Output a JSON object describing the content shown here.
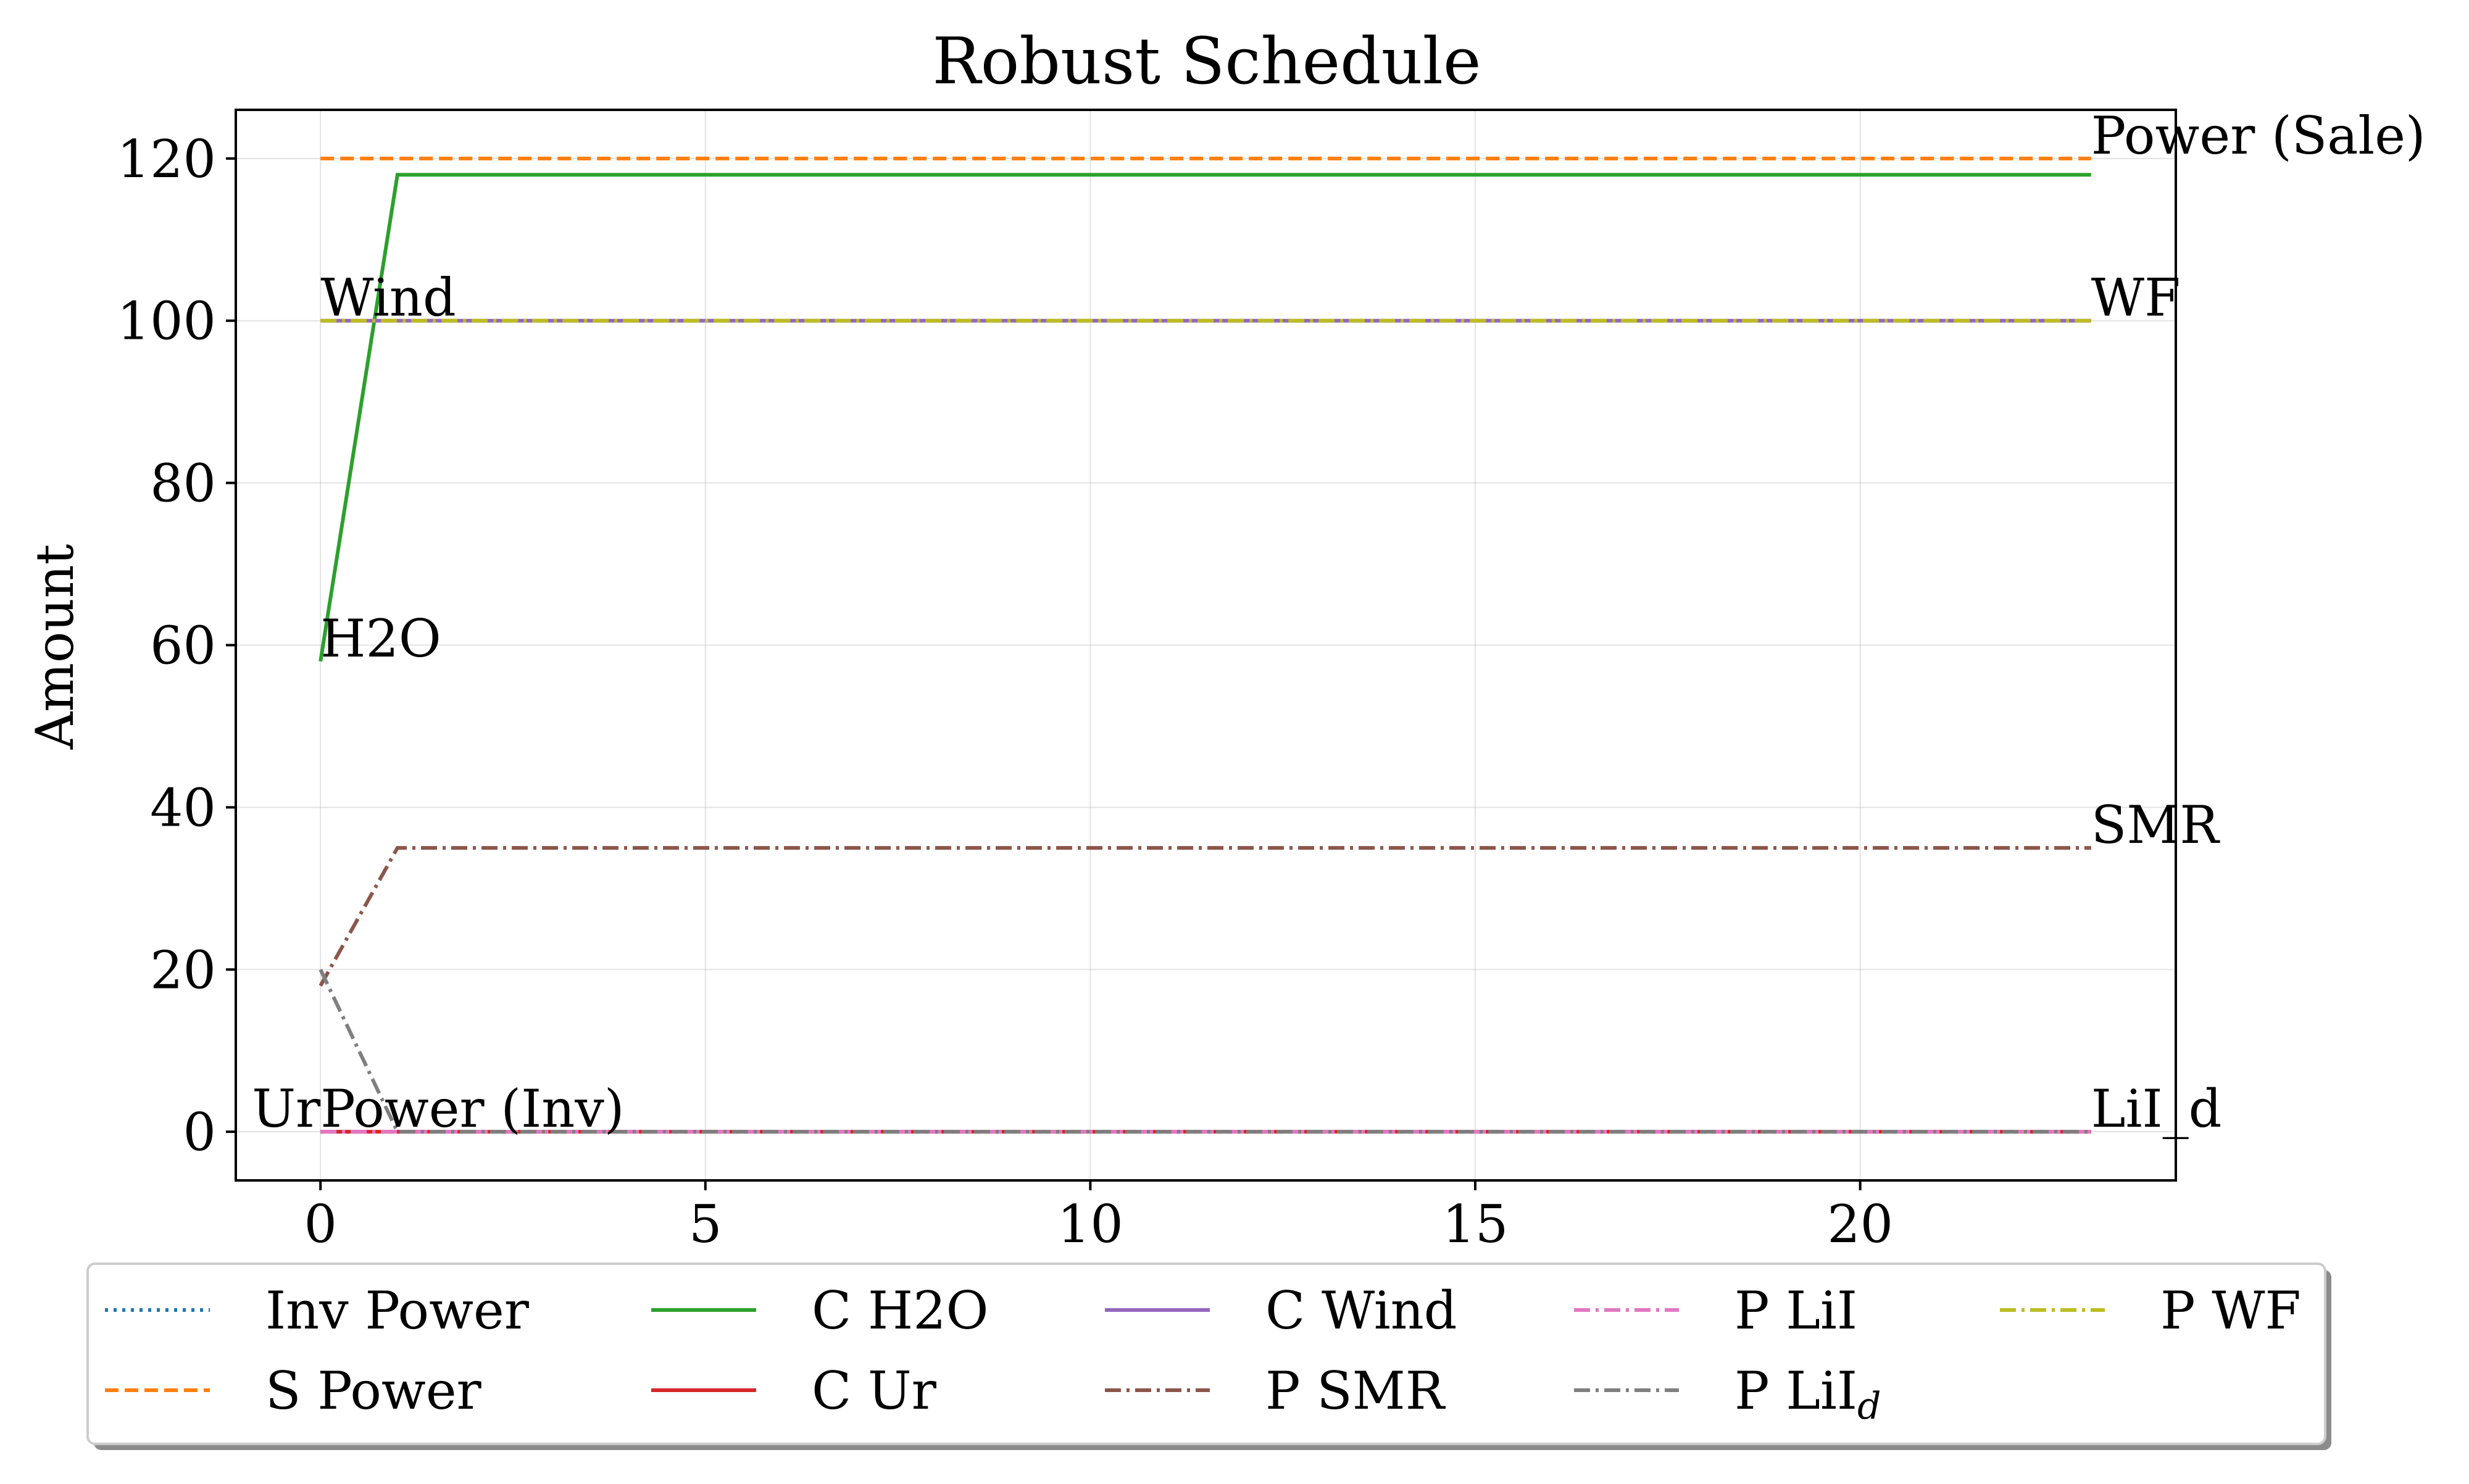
{
  "chart_data": {
    "type": "line",
    "title": "Robust Schedule",
    "xlabel": "",
    "ylabel": "Amount",
    "xlim": [
      -1.1,
      24.1
    ],
    "ylim": [
      -6,
      126
    ],
    "xticks": [
      0,
      5,
      10,
      15,
      20
    ],
    "yticks": [
      0,
      20,
      40,
      60,
      80,
      100,
      120
    ],
    "grid": true,
    "legend_placement": "bottom",
    "x": [
      0,
      1,
      2,
      3,
      4,
      5,
      6,
      7,
      8,
      9,
      10,
      11,
      12,
      13,
      14,
      15,
      16,
      17,
      18,
      19,
      20,
      21,
      22,
      23
    ],
    "series": [
      {
        "name": "Inv Power",
        "color": "#1f77b4",
        "style": "dotted",
        "values": [
          0,
          0,
          0,
          0,
          0,
          0,
          0,
          0,
          0,
          0,
          0,
          0,
          0,
          0,
          0,
          0,
          0,
          0,
          0,
          0,
          0,
          0,
          0,
          0
        ]
      },
      {
        "name": "S Power",
        "color": "#ff7f0e",
        "style": "dashed",
        "values": [
          120,
          120,
          120,
          120,
          120,
          120,
          120,
          120,
          120,
          120,
          120,
          120,
          120,
          120,
          120,
          120,
          120,
          120,
          120,
          120,
          120,
          120,
          120,
          120
        ]
      },
      {
        "name": "C H2O",
        "color": "#2ca02c",
        "style": "solid",
        "values": [
          58,
          118,
          118,
          118,
          118,
          118,
          118,
          118,
          118,
          118,
          118,
          118,
          118,
          118,
          118,
          118,
          118,
          118,
          118,
          118,
          118,
          118,
          118,
          118
        ]
      },
      {
        "name": "C Ur",
        "color": "#d62728",
        "style": "solid",
        "values": [
          0,
          0,
          0,
          0,
          0,
          0,
          0,
          0,
          0,
          0,
          0,
          0,
          0,
          0,
          0,
          0,
          0,
          0,
          0,
          0,
          0,
          0,
          0,
          0
        ]
      },
      {
        "name": "C Wind",
        "color": "#9467bd",
        "style": "solid",
        "values": [
          100,
          100,
          100,
          100,
          100,
          100,
          100,
          100,
          100,
          100,
          100,
          100,
          100,
          100,
          100,
          100,
          100,
          100,
          100,
          100,
          100,
          100,
          100,
          100
        ]
      },
      {
        "name": "P SMR",
        "color": "#8c564b",
        "style": "dashdot",
        "values": [
          18,
          35,
          35,
          35,
          35,
          35,
          35,
          35,
          35,
          35,
          35,
          35,
          35,
          35,
          35,
          35,
          35,
          35,
          35,
          35,
          35,
          35,
          35,
          35
        ]
      },
      {
        "name": "P LiI",
        "color": "#e377c2",
        "style": "dashdot",
        "values": [
          0,
          0,
          0,
          0,
          0,
          0,
          0,
          0,
          0,
          0,
          0,
          0,
          0,
          0,
          0,
          0,
          0,
          0,
          0,
          0,
          0,
          0,
          0,
          0
        ]
      },
      {
        "name": "P LiI",
        "name_sub": "d",
        "color": "#7f7f7f",
        "style": "dashdot",
        "values": [
          20,
          0,
          0,
          0,
          0,
          0,
          0,
          0,
          0,
          0,
          0,
          0,
          0,
          0,
          0,
          0,
          0,
          0,
          0,
          0,
          0,
          0,
          0,
          0
        ]
      },
      {
        "name": "P WF",
        "color": "#bcbd22",
        "style": "dashdot",
        "values": [
          100,
          100,
          100,
          100,
          100,
          100,
          100,
          100,
          100,
          100,
          100,
          100,
          100,
          100,
          100,
          100,
          100,
          100,
          100,
          100,
          100,
          100,
          100,
          100
        ]
      }
    ],
    "annotations": [
      {
        "text": "Power (Sale)",
        "x": 23,
        "y": 120
      },
      {
        "text": "WF",
        "x": 23,
        "y": 100
      },
      {
        "text": "SMR",
        "x": 23,
        "y": 35
      },
      {
        "text": "LiI_d",
        "x": 23,
        "y": 0
      },
      {
        "text": "Wind",
        "x": 0,
        "y": 100
      },
      {
        "text": "H2O",
        "x": 0,
        "y": 58
      },
      {
        "text": "Power (Inv)",
        "x": 0,
        "y": 0
      },
      {
        "text": "Ur",
        "x": 0,
        "y": 0,
        "anchor": "end"
      }
    ]
  }
}
